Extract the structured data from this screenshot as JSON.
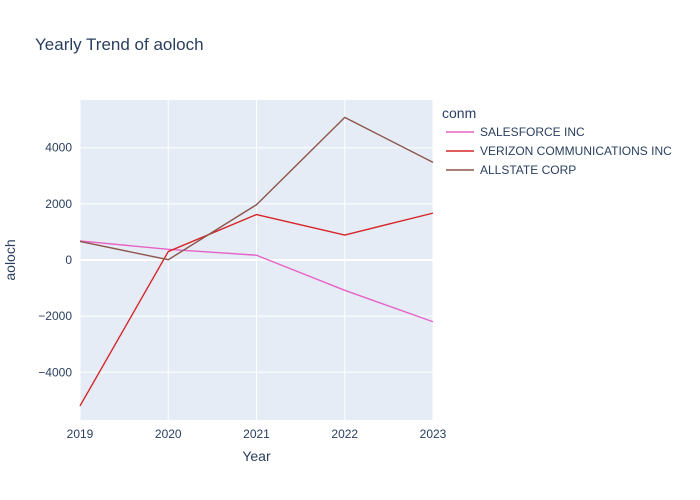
{
  "chart_data": {
    "type": "line",
    "title": "Yearly Trend of aoloch",
    "xlabel": "Year",
    "ylabel": "aoloch",
    "x": [
      "2019",
      "2020",
      "2021",
      "2022",
      "2023"
    ],
    "xlim": [
      2019,
      2023
    ],
    "ylim": [
      -5700,
      5700
    ],
    "yticks": [
      -4000,
      -2000,
      0,
      2000,
      4000
    ],
    "ytick_labels": [
      "−4000",
      "−2000",
      "0",
      "2000",
      "4000"
    ],
    "grid": true,
    "plot_background": "#e5ecf6",
    "legend": {
      "title": "conm",
      "placement": "right"
    },
    "series": [
      {
        "name": "SALESFORCE INC",
        "color": "#e763c6",
        "values": [
          680,
          380,
          170,
          -1080,
          -2200
        ]
      },
      {
        "name": "VERIZON COMMUNICATIONS INC",
        "color": "#d62728",
        "values": [
          -5200,
          300,
          1620,
          890,
          1670
        ]
      },
      {
        "name": "ALLSTATE CORP",
        "color": "#8c564b",
        "values": [
          660,
          10,
          1970,
          5080,
          3480
        ]
      }
    ]
  }
}
